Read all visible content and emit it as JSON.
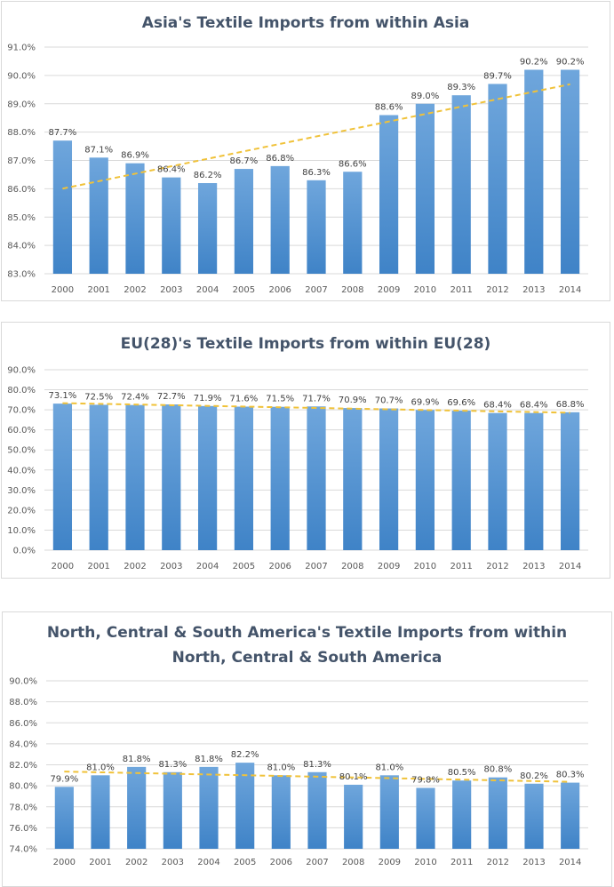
{
  "colors": {
    "bar_top": "#6fa6dc",
    "bar_bottom": "#3f83c7",
    "trend": "#f0c23a",
    "grid": "#d9d9d9",
    "title": "#44546a"
  },
  "chart_data": [
    {
      "type": "bar",
      "title": "Asia's Textile Imports from within Asia",
      "title_lines": [
        "Asia's Textile Imports from within Asia"
      ],
      "categories": [
        "2000",
        "2001",
        "2002",
        "2003",
        "2004",
        "2005",
        "2006",
        "2007",
        "2008",
        "2009",
        "2010",
        "2011",
        "2012",
        "2013",
        "2014"
      ],
      "values": [
        87.7,
        87.1,
        86.9,
        86.4,
        86.2,
        86.7,
        86.8,
        86.3,
        86.6,
        88.6,
        89.0,
        89.3,
        89.7,
        90.2,
        90.2
      ],
      "data_labels": [
        "87.7%",
        "87.1%",
        "86.9%",
        "86.4%",
        "86.2%",
        "86.7%",
        "86.8%",
        "86.3%",
        "86.6%",
        "88.6%",
        "89.0%",
        "89.3%",
        "89.7%",
        "90.2%",
        "90.2%"
      ],
      "ylim": [
        83,
        91
      ],
      "yticks": [
        83,
        84,
        85,
        86,
        87,
        88,
        89,
        90,
        91
      ],
      "ytick_labels": [
        "83.0%",
        "84.0%",
        "85.0%",
        "86.0%",
        "87.0%",
        "88.0%",
        "89.0%",
        "90.0%",
        "91.0%"
      ],
      "trendline": {
        "type": "linear",
        "dashed": true
      },
      "xlabel": "",
      "ylabel": "",
      "grid": true,
      "legend": "none"
    },
    {
      "type": "bar",
      "title": "EU(28)'s Textile Imports from within EU(28)",
      "title_lines": [
        "EU(28)'s Textile Imports from within EU(28)"
      ],
      "categories": [
        "2000",
        "2001",
        "2002",
        "2003",
        "2004",
        "2005",
        "2006",
        "2007",
        "2008",
        "2009",
        "2010",
        "2011",
        "2012",
        "2013",
        "2014"
      ],
      "values": [
        73.1,
        72.5,
        72.4,
        72.7,
        71.9,
        71.6,
        71.5,
        71.7,
        70.9,
        70.7,
        69.9,
        69.6,
        68.4,
        68.4,
        68.8
      ],
      "data_labels": [
        "73.1%",
        "72.5%",
        "72.4%",
        "72.7%",
        "71.9%",
        "71.6%",
        "71.5%",
        "71.7%",
        "70.9%",
        "70.7%",
        "69.9%",
        "69.6%",
        "68.4%",
        "68.4%",
        "68.8%"
      ],
      "ylim": [
        0,
        90
      ],
      "yticks": [
        0,
        10,
        20,
        30,
        40,
        50,
        60,
        70,
        80,
        90
      ],
      "ytick_labels": [
        "0.0%",
        "10.0%",
        "20.0%",
        "30.0%",
        "40.0%",
        "50.0%",
        "60.0%",
        "70.0%",
        "80.0%",
        "90.0%"
      ],
      "trendline": {
        "type": "linear",
        "dashed": true
      },
      "xlabel": "",
      "ylabel": "",
      "grid": true,
      "legend": "none"
    },
    {
      "type": "bar",
      "title": "North, Central & South America's Textile Imports from within North, Central & South America",
      "title_lines": [
        "North, Central & South America's Textile Imports from within",
        "North, Central & South America"
      ],
      "categories": [
        "2000",
        "2001",
        "2002",
        "2003",
        "2004",
        "2005",
        "2006",
        "2007",
        "2008",
        "2009",
        "2010",
        "2011",
        "2012",
        "2013",
        "2014"
      ],
      "values": [
        79.9,
        81.0,
        81.8,
        81.3,
        81.8,
        82.2,
        81.0,
        81.3,
        80.1,
        81.0,
        79.8,
        80.5,
        80.8,
        80.2,
        80.3
      ],
      "data_labels": [
        "79.9%",
        "81.0%",
        "81.8%",
        "81.3%",
        "81.8%",
        "82.2%",
        "81.0%",
        "81.3%",
        "80.1%",
        "81.0%",
        "79.8%",
        "80.5%",
        "80.8%",
        "80.2%",
        "80.3%"
      ],
      "ylim": [
        74,
        90
      ],
      "yticks": [
        74,
        76,
        78,
        80,
        82,
        84,
        86,
        88,
        90
      ],
      "ytick_labels": [
        "74.0%",
        "76.0%",
        "78.0%",
        "80.0%",
        "82.0%",
        "84.0%",
        "86.0%",
        "88.0%",
        "90.0%"
      ],
      "trendline": {
        "type": "linear",
        "dashed": true
      },
      "xlabel": "",
      "ylabel": "",
      "grid": true,
      "legend": "none"
    }
  ]
}
